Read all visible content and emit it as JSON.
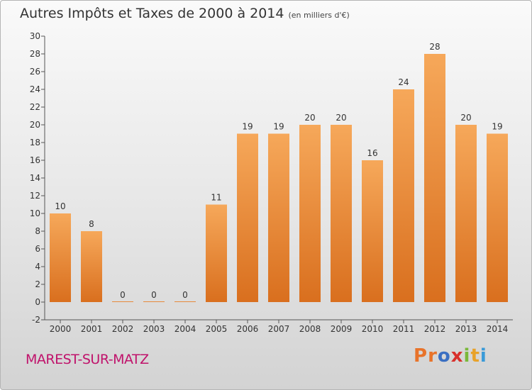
{
  "header": {
    "title": "Autres Impôts et Taxes de 2000 à 2014",
    "unit": "(en milliers d'€)"
  },
  "footer": {
    "commune": "MAREST-SUR-MATZ",
    "logo": "Proxiti",
    "logo_colors": [
      "#e8732a",
      "#e8732a",
      "#3a6fc2",
      "#d8302c",
      "#7ab83a",
      "#e8a22a",
      "#3a9ad8"
    ]
  },
  "colors": {
    "bar_top": "#f6a85a",
    "bar_bottom": "#d96f1e",
    "axis": "#555555",
    "grid_label": "#333333"
  },
  "chart_data": {
    "type": "bar",
    "categories": [
      "2000",
      "2001",
      "2002",
      "2003",
      "2004",
      "2005",
      "2006",
      "2007",
      "2008",
      "2009",
      "2010",
      "2011",
      "2012",
      "2013",
      "2014"
    ],
    "values": [
      10,
      8,
      0,
      0,
      0,
      11,
      19,
      19,
      20,
      20,
      16,
      24,
      28,
      20,
      19
    ],
    "data_labels": [
      "10",
      "8",
      "0",
      "0",
      "0",
      "11",
      "19",
      "19",
      "20",
      "20",
      "16",
      "24",
      "28",
      "20",
      "19"
    ],
    "yticks": [
      -2,
      0,
      2,
      4,
      6,
      8,
      10,
      12,
      14,
      16,
      18,
      20,
      22,
      24,
      26,
      28,
      30
    ],
    "ylim": [
      -2,
      30
    ],
    "xlabel": "",
    "ylabel": "",
    "grid": false,
    "legend": "none"
  }
}
